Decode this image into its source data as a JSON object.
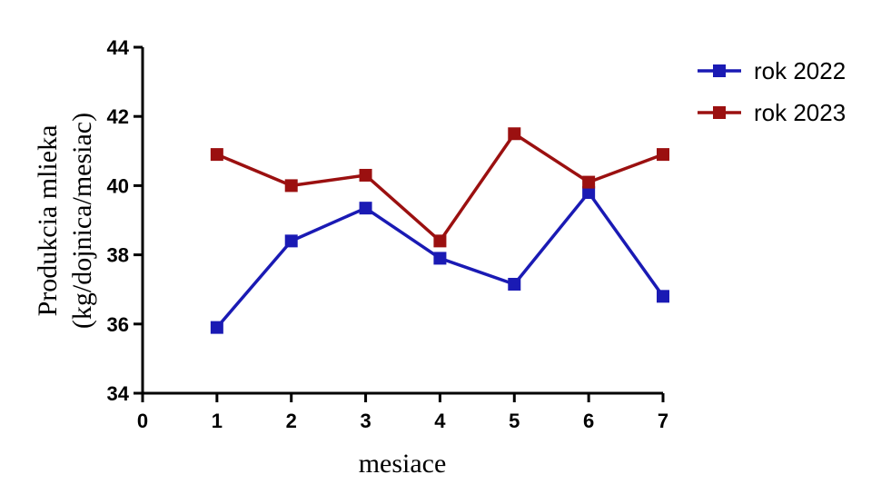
{
  "chart_data": {
    "type": "line",
    "title": "",
    "xlabel": "mesiace",
    "ylabel_lines": [
      "Produkcia mlieka",
      "(kg/dojnica/mesiac)"
    ],
    "xlim": [
      0,
      7
    ],
    "ylim": [
      34,
      44
    ],
    "x_ticks": [
      "0",
      "1",
      "2",
      "3",
      "4",
      "5",
      "6",
      "7"
    ],
    "y_ticks": [
      "34",
      "36",
      "38",
      "40",
      "42",
      "44"
    ],
    "grid": false,
    "legend_position": "top-right",
    "x": [
      1,
      2,
      3,
      4,
      5,
      6,
      7
    ],
    "series": [
      {
        "name": "rok 2022",
        "color": "#1a1ab4",
        "marker": "square",
        "values": [
          35.9,
          38.4,
          39.35,
          37.9,
          37.15,
          39.8,
          36.8
        ]
      },
      {
        "name": "rok 2023",
        "color": "#9b1010",
        "marker": "square",
        "values": [
          40.9,
          40.0,
          40.3,
          38.4,
          41.5,
          40.1,
          40.9
        ]
      }
    ]
  }
}
